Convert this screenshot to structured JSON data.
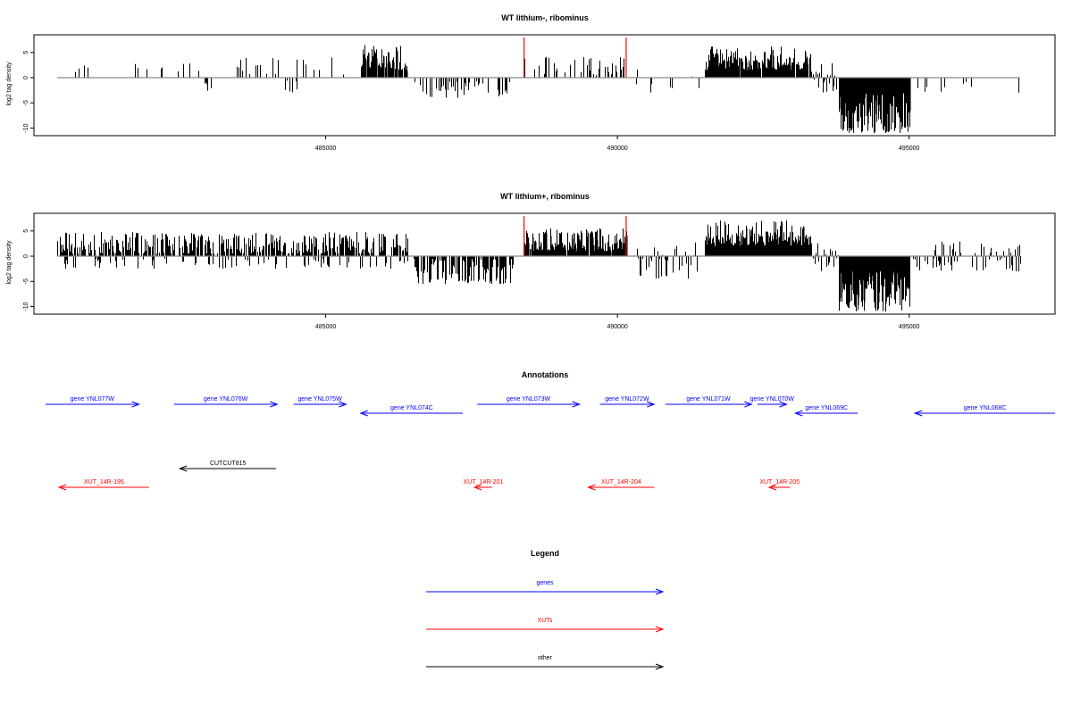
{
  "chart_data": [
    {
      "type": "bar",
      "title": "WT lithium-, ribominus",
      "ylabel": "log2 tag density",
      "xlabel": "",
      "xlim": [
        480000,
        497500
      ],
      "ylim": [
        -11.5,
        8.5
      ],
      "xticks": [
        "485000",
        "490000",
        "495000"
      ],
      "yticks": [
        "5",
        "0",
        "-5",
        "-10"
      ],
      "markers": [
        488400,
        490150
      ],
      "marker_color": "#ff0000",
      "regions": [
        {
          "start": 480400,
          "end": 481300,
          "density": 0.12,
          "min": 0.5,
          "max": 3.8
        },
        {
          "start": 481700,
          "end": 482900,
          "density": 0.1,
          "min": 0.5,
          "max": 3.0
        },
        {
          "start": 482900,
          "end": 483100,
          "density": 0.5,
          "min": -3,
          "max": -0.5
        },
        {
          "start": 483400,
          "end": 485300,
          "density": 0.14,
          "min": 0.5,
          "max": 4.0
        },
        {
          "start": 484300,
          "end": 484500,
          "density": 0.4,
          "min": -3,
          "max": -0.5
        },
        {
          "start": 485600,
          "end": 486400,
          "density": 0.85,
          "min": 1.5,
          "max": 6.5
        },
        {
          "start": 486500,
          "end": 488200,
          "density": 0.28,
          "min": -4.0,
          "max": -0.5
        },
        {
          "start": 488400,
          "end": 490150,
          "density": 0.28,
          "min": 0.5,
          "max": 4.3
        },
        {
          "start": 490300,
          "end": 491400,
          "density": 0.12,
          "min": -3,
          "max": 3
        },
        {
          "start": 491500,
          "end": 493300,
          "density": 0.95,
          "min": 1.5,
          "max": 6.2
        },
        {
          "start": 493300,
          "end": 493800,
          "density": 0.45,
          "min": -3,
          "max": 3.5
        },
        {
          "start": 493800,
          "end": 495000,
          "density": 1.0,
          "min": -11,
          "max": -3
        },
        {
          "start": 495000,
          "end": 496900,
          "density": 0.08,
          "min": -3,
          "max": -0.5
        }
      ]
    },
    {
      "type": "bar",
      "title": "WT lithium+, ribominus",
      "ylabel": "log2 tag density",
      "xlabel": "",
      "xlim": [
        480000,
        497500
      ],
      "ylim": [
        -11.5,
        8.5
      ],
      "xticks": [
        "485000",
        "490000",
        "495000"
      ],
      "yticks": [
        "5",
        "0",
        "-5",
        "-10"
      ],
      "markers": [
        488400,
        490150
      ],
      "marker_color": "#ff0000",
      "regions": [
        {
          "start": 480400,
          "end": 486400,
          "density": 0.75,
          "min": 0.5,
          "max": 4.8
        },
        {
          "start": 480400,
          "end": 486400,
          "density": 0.15,
          "min": -2.5,
          "max": -0.5
        },
        {
          "start": 486500,
          "end": 488200,
          "density": 0.7,
          "min": -5.5,
          "max": -0.5
        },
        {
          "start": 488400,
          "end": 490150,
          "density": 0.95,
          "min": 1.0,
          "max": 5.5
        },
        {
          "start": 490300,
          "end": 491400,
          "density": 0.35,
          "min": -4.5,
          "max": 3
        },
        {
          "start": 491500,
          "end": 493300,
          "density": 1.0,
          "min": 2.0,
          "max": 7.2
        },
        {
          "start": 493300,
          "end": 493800,
          "density": 0.6,
          "min": -3,
          "max": 4
        },
        {
          "start": 493800,
          "end": 495000,
          "density": 1.0,
          "min": -11,
          "max": -3
        },
        {
          "start": 495000,
          "end": 496900,
          "density": 0.45,
          "min": -3,
          "max": 3
        }
      ]
    }
  ],
  "annotations": {
    "title": "Annotations",
    "genes_color": "#0000ff",
    "xuts_color": "#ff0000",
    "other_color": "#000000",
    "features": [
      {
        "label": "gene YNL077W",
        "start": 480200,
        "end": 481800,
        "strand": "+",
        "row": 0,
        "kind": "genes"
      },
      {
        "label": "gene YNL076W",
        "start": 482400,
        "end": 484170,
        "strand": "+",
        "row": 0,
        "kind": "genes"
      },
      {
        "label": "gene YNL075W",
        "start": 484450,
        "end": 485350,
        "strand": "+",
        "row": 0,
        "kind": "genes"
      },
      {
        "label": "gene YNL074C",
        "start": 485600,
        "end": 487350,
        "strand": "-",
        "row": 1,
        "kind": "genes"
      },
      {
        "label": "gene YNL073W",
        "start": 487600,
        "end": 489350,
        "strand": "+",
        "row": 0,
        "kind": "genes"
      },
      {
        "label": "gene YNL072W",
        "start": 489700,
        "end": 490630,
        "strand": "+",
        "row": 0,
        "kind": "genes"
      },
      {
        "label": "gene YNL071W",
        "start": 490820,
        "end": 492300,
        "strand": "+",
        "row": 0,
        "kind": "genes"
      },
      {
        "label": "gene YNL070W",
        "start": 492400,
        "end": 492900,
        "strand": "+",
        "row": 0,
        "kind": "genes"
      },
      {
        "label": "gene YNL069C",
        "start": 493050,
        "end": 494120,
        "strand": "-",
        "row": 1,
        "kind": "genes"
      },
      {
        "label": "gene YNL068C",
        "start": 495100,
        "end": 497500,
        "strand": "-",
        "row": 1,
        "kind": "genes"
      },
      {
        "label": "CUTCUT815",
        "start": 482500,
        "end": 484150,
        "strand": "-",
        "row": 3,
        "kind": "other"
      },
      {
        "label": "XUT_14R-195",
        "start": 480430,
        "end": 481970,
        "strand": "-",
        "row": 4,
        "kind": "xuts"
      },
      {
        "label": "XUT_14R-201",
        "start": 487550,
        "end": 487850,
        "strand": "-",
        "row": 4,
        "kind": "xuts"
      },
      {
        "label": "XUT_14R-204",
        "start": 489500,
        "end": 490630,
        "strand": "-",
        "row": 4,
        "kind": "xuts"
      },
      {
        "label": "XUT_14R-205",
        "start": 492600,
        "end": 492960,
        "strand": "-",
        "row": 4,
        "kind": "xuts"
      }
    ]
  },
  "legend": {
    "title": "Legend",
    "items": [
      {
        "label": "genes",
        "color": "#0000ff"
      },
      {
        "label": "XUTs",
        "color": "#ff0000"
      },
      {
        "label": "other",
        "color": "#000000"
      }
    ]
  }
}
